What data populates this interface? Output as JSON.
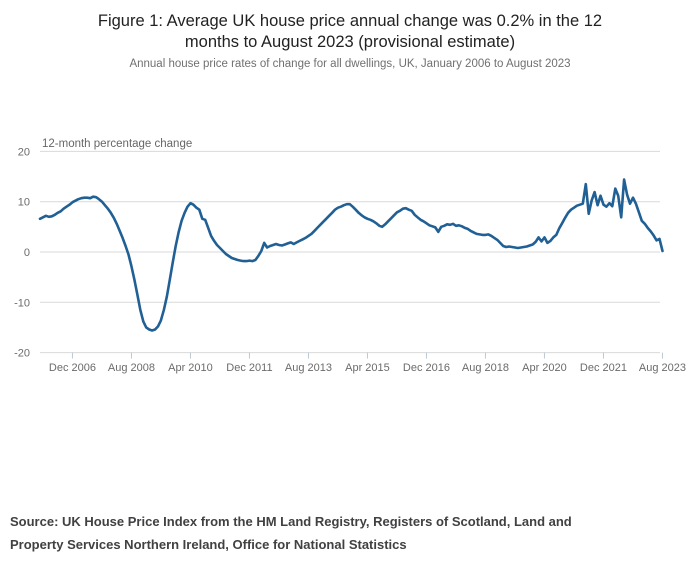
{
  "page": {
    "title_lines": [
      "Figure 1: Average UK house price annual change was 0.2% in the 12",
      "months to August 2023 (provisional estimate)"
    ],
    "subtitle": "Annual house price rates of change for all dwellings, UK, January 2006 to August 2023",
    "source_lines": [
      "Source: UK House Price Index from the HM Land Registry, Registers of Scotland, Land and",
      "Property Services Northern Ireland, Office for National Statistics"
    ]
  },
  "chart_data": {
    "type": "line",
    "title": "Figure 1: Average UK house price annual change was 0.2% in the 12 months to August 2023 (provisional estimate)",
    "subtitle": "Annual house price rates of change for all dwellings, UK, January 2006 to August 2023",
    "axis_title": "12-month percentage change",
    "x_start": "2006-01",
    "x_end": "2023-08",
    "frequency": "monthly",
    "x_tick_labels": [
      "Dec 2006",
      "Aug 2008",
      "Apr 2010",
      "Dec 2011",
      "Aug 2013",
      "Apr 2015",
      "Dec 2016",
      "Aug 2018",
      "Apr 2020",
      "Dec 2021",
      "Aug 2023"
    ],
    "x_tick_month_indices": [
      11,
      31,
      51,
      71,
      91,
      111,
      131,
      151,
      171,
      191,
      211
    ],
    "y_ticks": [
      20,
      10,
      0,
      -10,
      -20
    ],
    "ylim": [
      -20,
      20
    ],
    "grid": "horizontal",
    "legend": "none",
    "series": [
      {
        "name": "12-month percentage change",
        "values": [
          6.6,
          6.9,
          7.2,
          7.0,
          7.1,
          7.4,
          7.8,
          8.1,
          8.6,
          9.0,
          9.4,
          9.9,
          10.2,
          10.5,
          10.7,
          10.8,
          10.8,
          10.7,
          11.0,
          10.9,
          10.5,
          10.0,
          9.3,
          8.6,
          7.8,
          6.8,
          5.6,
          4.2,
          2.8,
          1.2,
          -0.5,
          -2.8,
          -5.5,
          -8.5,
          -11.5,
          -13.8,
          -15.0,
          -15.4,
          -15.6,
          -15.4,
          -14.8,
          -13.6,
          -11.5,
          -8.8,
          -5.5,
          -2.0,
          1.2,
          4.0,
          6.2,
          7.8,
          9.0,
          9.7,
          9.4,
          8.8,
          8.4,
          6.6,
          6.4,
          4.8,
          3.2,
          2.2,
          1.4,
          0.8,
          0.2,
          -0.4,
          -0.8,
          -1.2,
          -1.4,
          -1.6,
          -1.7,
          -1.8,
          -1.8,
          -1.7,
          -1.8,
          -1.6,
          -0.8,
          0.2,
          1.8,
          0.9,
          1.2,
          1.4,
          1.6,
          1.4,
          1.3,
          1.5,
          1.7,
          1.9,
          1.6,
          1.9,
          2.2,
          2.5,
          2.8,
          3.2,
          3.6,
          4.2,
          4.8,
          5.4,
          6.0,
          6.6,
          7.2,
          7.8,
          8.4,
          8.8,
          9.0,
          9.3,
          9.5,
          9.5,
          9.0,
          8.4,
          7.8,
          7.3,
          6.9,
          6.6,
          6.4,
          6.1,
          5.7,
          5.2,
          5.0,
          5.5,
          6.1,
          6.7,
          7.3,
          7.9,
          8.2,
          8.6,
          8.7,
          8.4,
          8.2,
          7.4,
          6.9,
          6.4,
          6.1,
          5.7,
          5.3,
          5.1,
          4.9,
          4.0,
          5.0,
          5.2,
          5.5,
          5.4,
          5.6,
          5.2,
          5.3,
          5.1,
          4.8,
          4.6,
          4.2,
          3.9,
          3.6,
          3.5,
          3.4,
          3.4,
          3.5,
          3.2,
          2.8,
          2.4,
          1.8,
          1.2,
          1.0,
          1.1,
          1.0,
          0.9,
          0.8,
          0.9,
          1.0,
          1.1,
          1.3,
          1.5,
          2.0,
          2.9,
          2.1,
          2.9,
          1.8,
          2.2,
          2.9,
          3.4,
          4.7,
          5.7,
          6.8,
          7.8,
          8.4,
          8.8,
          9.2,
          9.4,
          9.6,
          13.5,
          7.6,
          10.2,
          11.9,
          9.3,
          11.2,
          9.4,
          9.0,
          9.7,
          9.1,
          12.6,
          11.2,
          6.9,
          14.4,
          11.4,
          9.6,
          10.8,
          9.6,
          7.9,
          6.2,
          5.6,
          4.8,
          4.1,
          3.3,
          2.3,
          2.6,
          0.2
        ]
      }
    ],
    "last_value_label": "0.2",
    "colors": {
      "line": "#206095",
      "grid": "#d9d9d9",
      "tick": "#bcc9d4",
      "axis_text": "#6b6b6b",
      "axis_title_text": "#666666",
      "title_text": "#222222",
      "subtitle_text": "#707070",
      "source_text": "#414042"
    }
  }
}
